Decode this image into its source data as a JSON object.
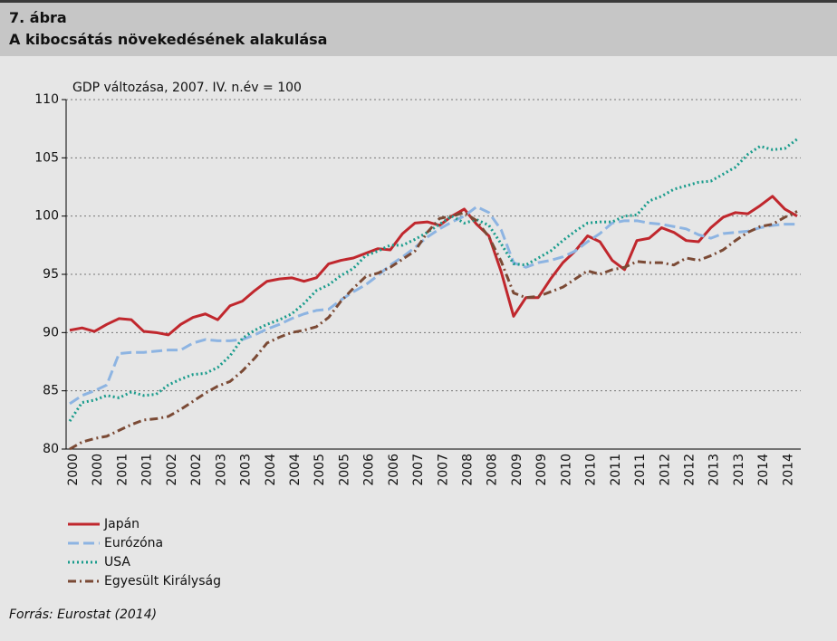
{
  "header": {
    "number": "7. ábra",
    "title": "A kibocsátás növekedésének alakulása"
  },
  "chart_data": {
    "type": "line",
    "ylabel": "GDP változása, 2007. IV. n.év = 100",
    "categories": [
      "2000",
      null,
      "2000",
      null,
      "2001",
      null,
      "2001",
      null,
      "2002",
      null,
      "2002",
      null,
      "2003",
      null,
      "2003",
      null,
      "2004",
      null,
      "2004",
      null,
      "2005",
      null,
      "2005",
      null,
      "2006",
      null,
      "2006",
      null,
      "2007",
      null,
      "2007",
      null,
      "2008",
      null,
      "2008",
      null,
      "2009",
      null,
      "2009",
      null,
      "2010",
      null,
      "2010",
      null,
      "2011",
      null,
      "2011",
      null,
      "2012",
      null,
      "2012",
      null,
      "2013",
      null,
      "2013",
      null,
      "2014",
      null,
      "2014",
      null
    ],
    "ylim": [
      80,
      110
    ],
    "yticks": [
      80,
      85,
      90,
      95,
      100,
      105,
      110
    ],
    "grid": true,
    "series": [
      {
        "name": "Japán",
        "color": "#c0272d",
        "style": "solid",
        "values": [
          90.2,
          90.4,
          90.1,
          90.7,
          91.2,
          91.1,
          90.1,
          90.0,
          89.8,
          90.7,
          91.3,
          91.6,
          91.1,
          92.3,
          92.7,
          93.6,
          94.4,
          94.6,
          94.7,
          94.4,
          94.7,
          95.9,
          96.2,
          96.4,
          96.8,
          97.2,
          97.1,
          98.5,
          99.4,
          99.5,
          99.2,
          100.0,
          100.6,
          99.3,
          98.3,
          95.2,
          91.4,
          93.0,
          93.0,
          94.6,
          96.0,
          97.0,
          98.3,
          97.8,
          96.2,
          95.4,
          97.9,
          98.1,
          99.0,
          98.6,
          97.9,
          97.8,
          99.0,
          99.9,
          100.3,
          100.2,
          100.9,
          101.7,
          100.6,
          100.0
        ]
      },
      {
        "name": "Eurózóna",
        "color": "#8db4e2",
        "style": "dashed",
        "values": [
          83.9,
          84.6,
          85.0,
          85.5,
          88.2,
          88.3,
          88.3,
          88.4,
          88.5,
          88.5,
          89.1,
          89.4,
          89.3,
          89.3,
          89.4,
          89.8,
          90.3,
          90.7,
          91.2,
          91.6,
          91.9,
          92.0,
          92.8,
          93.5,
          94.1,
          94.9,
          95.8,
          96.5,
          97.3,
          98.2,
          98.9,
          99.5,
          100.0,
          100.8,
          100.3,
          98.8,
          96.0,
          95.6,
          96.0,
          96.2,
          96.5,
          97.0,
          97.8,
          98.5,
          99.4,
          99.6,
          99.6,
          99.4,
          99.3,
          99.1,
          98.9,
          98.4,
          98.1,
          98.5,
          98.6,
          98.7,
          99.0,
          99.2,
          99.3,
          99.3
        ]
      },
      {
        "name": "USA",
        "color": "#1a9c8c",
        "style": "dotted",
        "values": [
          82.4,
          84.0,
          84.2,
          84.6,
          84.4,
          84.9,
          84.6,
          84.7,
          85.5,
          86.0,
          86.4,
          86.5,
          87.0,
          88.0,
          89.5,
          90.2,
          90.7,
          91.1,
          91.6,
          92.5,
          93.6,
          94.1,
          94.9,
          95.5,
          96.6,
          97.0,
          97.5,
          97.5,
          98.0,
          98.6,
          99.3,
          100.0,
          99.4,
          99.7,
          99.2,
          97.6,
          95.9,
          95.8,
          96.4,
          97.0,
          97.9,
          98.7,
          99.4,
          99.5,
          99.5,
          100.0,
          100.1,
          101.3,
          101.7,
          102.3,
          102.6,
          102.9,
          103.0,
          103.6,
          104.2,
          105.3,
          106.0,
          105.7,
          105.8,
          106.6
        ]
      },
      {
        "name": "Egyesült Királyság",
        "color": "#7b4a35",
        "style": "dashdot",
        "values": [
          80.0,
          80.6,
          80.9,
          81.1,
          81.6,
          82.1,
          82.5,
          82.6,
          82.8,
          83.4,
          84.1,
          84.8,
          85.4,
          85.8,
          86.7,
          87.8,
          89.1,
          89.6,
          90.0,
          90.2,
          90.5,
          91.3,
          92.7,
          93.8,
          94.8,
          95.1,
          95.6,
          96.3,
          97.0,
          98.6,
          99.8,
          100.0,
          100.3,
          99.6,
          98.2,
          96.1,
          93.4,
          93.0,
          93.1,
          93.5,
          93.9,
          94.6,
          95.3,
          95.0,
          95.4,
          95.6,
          96.1,
          96.0,
          96.0,
          95.8,
          96.4,
          96.2,
          96.6,
          97.1,
          97.9,
          98.6,
          99.1,
          99.3,
          99.9,
          100.4
        ]
      }
    ]
  },
  "source": "Forrás: Eurostat (2014)"
}
